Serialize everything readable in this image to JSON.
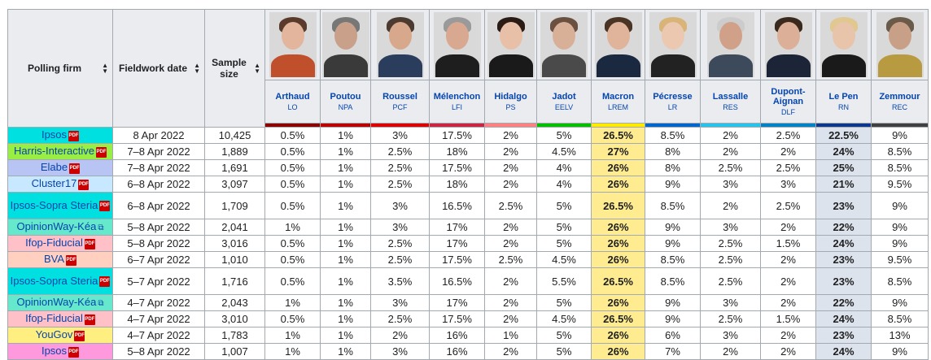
{
  "headers": {
    "polling_firm": "Polling firm",
    "fieldwork_date": "Fieldwork date",
    "sample_size": "Sample size"
  },
  "candidates": [
    {
      "name": "Arthaud",
      "party": "LO",
      "color": "#8b0000",
      "skin": "#e2b59c",
      "hair": "#5a3a2a",
      "cloth": "#c0502b"
    },
    {
      "name": "Poutou",
      "party": "NPA",
      "color": "#bb0000",
      "skin": "#c9a08a",
      "hair": "#777777",
      "cloth": "#3a3a3a"
    },
    {
      "name": "Roussel",
      "party": "PCF",
      "color": "#dd0000",
      "skin": "#d8a88c",
      "hair": "#4a3a30",
      "cloth": "#2b3d5c"
    },
    {
      "name": "Mélenchon",
      "party": "LFI",
      "color": "#cc2443",
      "skin": "#d8a890",
      "hair": "#9a9a9a",
      "cloth": "#1e1e1e"
    },
    {
      "name": "Hidalgo",
      "party": "PS",
      "color": "#ff8080",
      "skin": "#e8c0a8",
      "hair": "#2a1c14",
      "cloth": "#1a1a1a"
    },
    {
      "name": "Jadot",
      "party": "EELV",
      "color": "#00c000",
      "skin": "#d8b098",
      "hair": "#6a5040",
      "cloth": "#4a4a4a"
    },
    {
      "name": "Macron",
      "party": "LREM",
      "color": "#ffeb00",
      "skin": "#e0b49a",
      "hair": "#4a3424",
      "cloth": "#1a2840"
    },
    {
      "name": "Pécresse",
      "party": "LR",
      "color": "#0066cc",
      "skin": "#ecc8b0",
      "hair": "#d8b478",
      "cloth": "#222222"
    },
    {
      "name": "Lassalle",
      "party": "RES",
      "color": "#26c4ec",
      "skin": "#d0a088",
      "hair": "#cccccc",
      "cloth": "#3c4a5c"
    },
    {
      "name": "Dupont-Aignan",
      "party": "DLF",
      "color": "#0082c4",
      "skin": "#dcb098",
      "hair": "#3a2a1e",
      "cloth": "#1c2438"
    },
    {
      "name": "Le Pen",
      "party": "RN",
      "color": "#0d378a",
      "skin": "#e8c4aa",
      "hair": "#e0c890",
      "cloth": "#1a1a1a"
    },
    {
      "name": "Zemmour",
      "party": "REC",
      "color": "#404040",
      "skin": "#c8a088",
      "hair": "#6a5a4a",
      "cloth": "#b89a40"
    }
  ],
  "rows": [
    {
      "firm": "Ipsos",
      "firm_color": "#00e0e0",
      "pdf": true,
      "ext": false,
      "tall": false,
      "date": "8 Apr 2022",
      "sample": "10,425",
      "values": [
        "0.5%",
        "1%",
        "3%",
        "17.5%",
        "2%",
        "5%",
        "26.5%",
        "8.5%",
        "2%",
        "2.5%",
        "22.5%",
        "9%"
      ]
    },
    {
      "firm": "Harris-Interactive",
      "firm_color": "#99ee44",
      "pdf": true,
      "ext": false,
      "tall": false,
      "date": "7–8 Apr 2022",
      "sample": "1,889",
      "values": [
        "0.5%",
        "1%",
        "2.5%",
        "18%",
        "2%",
        "4.5%",
        "27%",
        "8%",
        "2%",
        "2%",
        "24%",
        "8.5%"
      ]
    },
    {
      "firm": "Elabe",
      "firm_color": "#b8c4f4",
      "pdf": true,
      "ext": false,
      "tall": false,
      "date": "7–8 Apr 2022",
      "sample": "1,691",
      "values": [
        "0.5%",
        "1%",
        "2.5%",
        "17.5%",
        "2%",
        "4%",
        "26%",
        "8%",
        "2.5%",
        "2.5%",
        "25%",
        "8.5%"
      ]
    },
    {
      "firm": "Cluster17",
      "firm_color": "#c8e8ff",
      "pdf": true,
      "ext": false,
      "tall": false,
      "date": "6–8 Apr 2022",
      "sample": "3,097",
      "values": [
        "0.5%",
        "1%",
        "2.5%",
        "18%",
        "2%",
        "4%",
        "26%",
        "9%",
        "3%",
        "3%",
        "21%",
        "9.5%"
      ]
    },
    {
      "firm": "Ipsos-Sopra Steria",
      "firm_color": "#00e0e0",
      "pdf": true,
      "ext": false,
      "tall": true,
      "date": "6–8 Apr 2022",
      "sample": "1,709",
      "values": [
        "0.5%",
        "1%",
        "3%",
        "16.5%",
        "2.5%",
        "5%",
        "26.5%",
        "8.5%",
        "2%",
        "2.5%",
        "23%",
        "9%"
      ]
    },
    {
      "firm": "OpinionWay-Kéa",
      "firm_color": "#66e8cc",
      "pdf": false,
      "ext": true,
      "tall": false,
      "date": "5–8 Apr 2022",
      "sample": "2,041",
      "values": [
        "1%",
        "1%",
        "3%",
        "17%",
        "2%",
        "5%",
        "26%",
        "9%",
        "3%",
        "2%",
        "22%",
        "9%"
      ]
    },
    {
      "firm": "Ifop-Fiducial",
      "firm_color": "#ffc0c8",
      "pdf": true,
      "ext": false,
      "tall": false,
      "date": "5–8 Apr 2022",
      "sample": "3,016",
      "values": [
        "0.5%",
        "1%",
        "2.5%",
        "17%",
        "2%",
        "5%",
        "26%",
        "9%",
        "2.5%",
        "1.5%",
        "24%",
        "9%"
      ]
    },
    {
      "firm": "BVA",
      "firm_color": "#ffd0c0",
      "pdf": true,
      "ext": false,
      "tall": false,
      "date": "6–7 Apr 2022",
      "sample": "1,010",
      "values": [
        "0.5%",
        "1%",
        "2.5%",
        "17.5%",
        "2.5%",
        "4.5%",
        "26%",
        "8.5%",
        "2.5%",
        "2%",
        "23%",
        "9.5%"
      ]
    },
    {
      "firm": "Ipsos-Sopra Steria",
      "firm_color": "#00e0e0",
      "pdf": true,
      "ext": false,
      "tall": true,
      "date": "5–7 Apr 2022",
      "sample": "1,716",
      "values": [
        "0.5%",
        "1%",
        "3.5%",
        "16.5%",
        "2%",
        "5.5%",
        "26.5%",
        "8.5%",
        "2.5%",
        "2%",
        "23%",
        "8.5%"
      ]
    },
    {
      "firm": "OpinionWay-Kéa",
      "firm_color": "#66e8cc",
      "pdf": false,
      "ext": true,
      "tall": false,
      "date": "4–7 Apr 2022",
      "sample": "2,043",
      "values": [
        "1%",
        "1%",
        "3%",
        "17%",
        "2%",
        "5%",
        "26%",
        "9%",
        "3%",
        "2%",
        "22%",
        "9%"
      ]
    },
    {
      "firm": "Ifop-Fiducial",
      "firm_color": "#ffc0c8",
      "pdf": true,
      "ext": false,
      "tall": false,
      "date": "4–7 Apr 2022",
      "sample": "3,010",
      "values": [
        "0.5%",
        "1%",
        "2.5%",
        "17.5%",
        "2%",
        "4.5%",
        "26.5%",
        "9%",
        "2.5%",
        "1.5%",
        "24%",
        "8.5%"
      ]
    },
    {
      "firm": "YouGov",
      "firm_color": "#ffee80",
      "pdf": true,
      "ext": false,
      "tall": false,
      "date": "4–7 Apr 2022",
      "sample": "1,783",
      "values": [
        "1%",
        "1%",
        "2%",
        "16%",
        "1%",
        "5%",
        "26%",
        "6%",
        "3%",
        "2%",
        "23%",
        "13%"
      ]
    },
    {
      "firm": "Ipsos",
      "firm_color": "#ff99dd",
      "pdf": true,
      "ext": false,
      "tall": false,
      "date": "5–8 Apr 2022",
      "sample": "1,007",
      "values": [
        "1%",
        "1%",
        "3%",
        "16%",
        "2%",
        "5%",
        "26%",
        "7%",
        "2%",
        "2%",
        "24%",
        "9%"
      ]
    }
  ],
  "icons": {
    "sort": "sort-arrows-icon",
    "pdf": "pdf-icon",
    "external": "external-link-icon"
  },
  "pdf_label": "PDF"
}
